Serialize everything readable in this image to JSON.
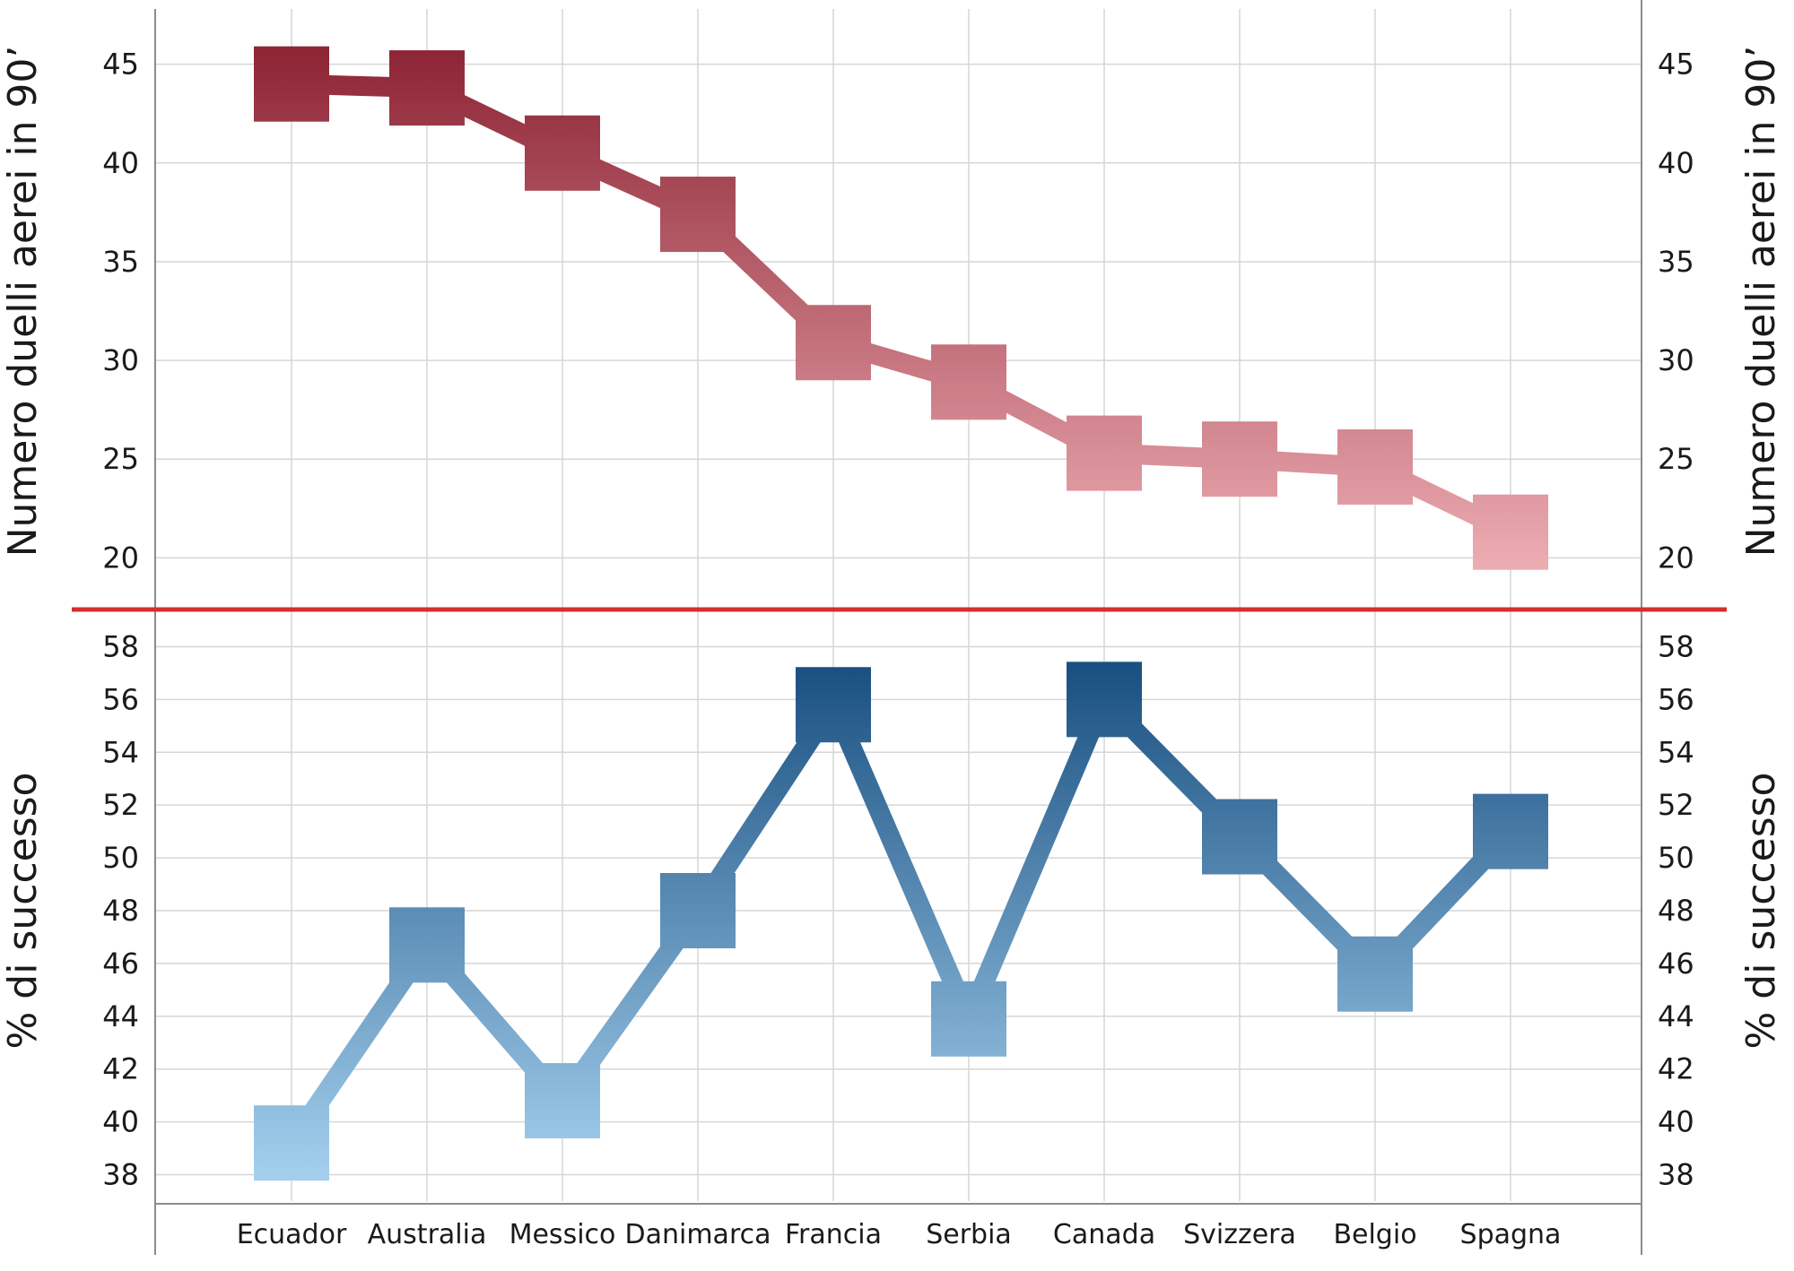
{
  "chart_data": [
    {
      "type": "line",
      "panel": "top",
      "categories": [
        "Ecuador",
        "Australia",
        "Messico",
        "Danimarca",
        "Francia",
        "Serbia",
        "Canada",
        "Svizzera",
        "Belgio",
        "Spagna"
      ],
      "series": [
        {
          "values": [
            44.0,
            43.8,
            40.5,
            37.4,
            30.9,
            28.9,
            25.3,
            25.0,
            24.6,
            21.3
          ]
        }
      ],
      "ylabel_left": "Numero duelli aerei in 90’",
      "ylabel_right": "Numero duelli aerei in 90’",
      "yticks": [
        20,
        25,
        30,
        35,
        40,
        45
      ],
      "ylim": [
        18.2,
        47.8
      ],
      "grid": true,
      "marker": "square",
      "gradient": {
        "from": "#8e2636",
        "to": "#f0b0b6"
      }
    },
    {
      "type": "line",
      "panel": "bottom",
      "categories": [
        "Ecuador",
        "Australia",
        "Messico",
        "Danimarca",
        "Francia",
        "Serbia",
        "Canada",
        "Svizzera",
        "Belgio",
        "Spagna"
      ],
      "series": [
        {
          "values": [
            39.2,
            46.7,
            40.8,
            48.0,
            55.8,
            43.9,
            56.0,
            50.8,
            45.6,
            51.0
          ]
        }
      ],
      "ylabel_left": "% di successo",
      "ylabel_right": "% di successo",
      "yticks": [
        38,
        40,
        42,
        44,
        46,
        48,
        50,
        52,
        54,
        56,
        58
      ],
      "ylim": [
        37.0,
        59.0
      ],
      "grid": true,
      "marker": "square",
      "gradient": {
        "from": "#134a7c",
        "to": "#a3cfed"
      }
    }
  ],
  "colors": {
    "divider": "#d42f2f",
    "grid": "#d6d6d6",
    "axis": "#8c8c8c"
  }
}
